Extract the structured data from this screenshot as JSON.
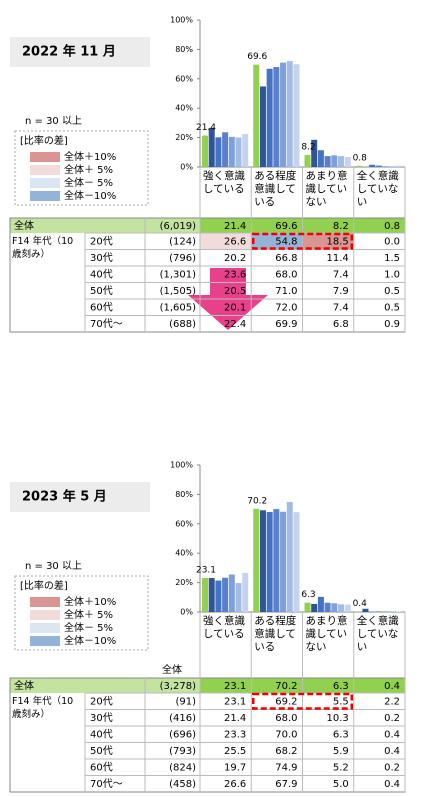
{
  "panels": [
    {
      "period": "2022 年 11 月",
      "n_note": "n = 30 以上",
      "legend_title": "[比率の差]",
      "legend": [
        {
          "label": "全体＋10%",
          "color": "#d99594"
        },
        {
          "label": "全体＋ 5%",
          "color": "#f2dcdb"
        },
        {
          "label": "全体－ 5%",
          "color": "#dce6f2"
        },
        {
          "label": "全体－10%",
          "color": "#95b3d7"
        }
      ],
      "ylim": [
        0,
        100
      ],
      "yticks": [
        {
          "value": 0,
          "label": "0%"
        },
        {
          "value": 20,
          "label": "20%"
        },
        {
          "value": 40,
          "label": "40%"
        },
        {
          "value": 60,
          "label": "60%"
        },
        {
          "value": 80,
          "label": "80%"
        },
        {
          "value": 100,
          "label": "100%"
        }
      ],
      "columns": [
        "強く意識している",
        "ある程度意識している",
        "あまり意識していない",
        "全く意識していない"
      ],
      "bar_colors": [
        "#92d050",
        "#2f5597",
        "#4472c4",
        "#5b7fc8",
        "#7f9fd8",
        "#a4bce4",
        "#c5d3ee"
      ],
      "total": {
        "label": "全体",
        "n": "(6,019)",
        "values": [
          21.4,
          69.6,
          8.2,
          0.8
        ],
        "value_labels": [
          "21.4",
          "69.6",
          "8.2",
          "0.8"
        ]
      },
      "group_label": "F14 年代（10 歳刻み）",
      "rows": [
        {
          "label": "20代",
          "n": "(124)",
          "values": [
            26.6,
            54.8,
            18.5,
            0
          ],
          "value_labels": [
            "26.6",
            "54.8",
            "18.5",
            "0.0"
          ],
          "shade": [
            1,
            3,
            0,
            null
          ]
        },
        {
          "label": "30代",
          "n": "(796)",
          "values": [
            20.2,
            66.8,
            11.4,
            1.5
          ],
          "value_labels": [
            "20.2",
            "66.8",
            "11.4",
            "1.5"
          ]
        },
        {
          "label": "40代",
          "n": "(1,301)",
          "values": [
            23.6,
            68,
            7.4,
            1
          ],
          "value_labels": [
            "23.6",
            "68.0",
            "7.4",
            "1.0"
          ]
        },
        {
          "label": "50代",
          "n": "(1,505)",
          "values": [
            20.5,
            71,
            7.9,
            0.5
          ],
          "value_labels": [
            "20.5",
            "71.0",
            "7.9",
            "0.5"
          ]
        },
        {
          "label": "60代",
          "n": "(1,605)",
          "values": [
            20.1,
            72,
            7.4,
            0.5
          ],
          "value_labels": [
            "20.1",
            "72.0",
            "7.4",
            "0.5"
          ]
        },
        {
          "label": "70代～",
          "n": "(688)",
          "values": [
            22.4,
            69.9,
            6.8,
            0.9
          ],
          "value_labels": [
            "22.4",
            "69.9",
            "6.8",
            "0.9"
          ]
        }
      ]
    },
    {
      "period": "2023 年 5 月",
      "n_note": "n = 30 以上",
      "legend_title": "[比率の差]",
      "legend": [
        {
          "label": "全体＋10%",
          "color": "#d99594"
        },
        {
          "label": "全体＋ 5%",
          "color": "#f2dcdb"
        },
        {
          "label": "全体－ 5%",
          "color": "#dce6f2"
        },
        {
          "label": "全体－10%",
          "color": "#95b3d7"
        }
      ],
      "ylim": [
        0,
        100
      ],
      "yticks": [
        {
          "value": 0,
          "label": "0%"
        },
        {
          "value": 20,
          "label": "20%"
        },
        {
          "value": 40,
          "label": "40%"
        },
        {
          "value": 60,
          "label": "60%"
        },
        {
          "value": 80,
          "label": "80%"
        },
        {
          "value": 100,
          "label": "100%"
        }
      ],
      "columns": [
        "強く意識している",
        "ある程度意識している",
        "あまり意識していない",
        "全く意識していない"
      ],
      "bar_colors": [
        "#92d050",
        "#2f5597",
        "#4472c4",
        "#5b7fc8",
        "#7f9fd8",
        "#a4bce4",
        "#c5d3ee"
      ],
      "n_header": "全体",
      "total": {
        "label": "全体",
        "n": "(3,278)",
        "values": [
          23.1,
          70.2,
          6.3,
          0.4
        ],
        "value_labels": [
          "23.1",
          "70.2",
          "6.3",
          "0.4"
        ]
      },
      "group_label": "F14 年代（10 歳刻み）",
      "rows": [
        {
          "label": "20代",
          "n": "(91)",
          "values": [
            23.1,
            69.2,
            5.5,
            2.2
          ],
          "value_labels": [
            "23.1",
            "69.2",
            "5.5",
            "2.2"
          ]
        },
        {
          "label": "30代",
          "n": "(416)",
          "values": [
            21.4,
            68,
            10.3,
            0.2
          ],
          "value_labels": [
            "21.4",
            "68.0",
            "10.3",
            "0.2"
          ]
        },
        {
          "label": "40代",
          "n": "(696)",
          "values": [
            23.3,
            70,
            6.3,
            0.4
          ],
          "value_labels": [
            "23.3",
            "70.0",
            "6.3",
            "0.4"
          ]
        },
        {
          "label": "50代",
          "n": "(793)",
          "values": [
            25.5,
            68.2,
            5.9,
            0.4
          ],
          "value_labels": [
            "25.5",
            "68.2",
            "5.9",
            "0.4"
          ]
        },
        {
          "label": "60代",
          "n": "(824)",
          "values": [
            19.7,
            74.9,
            5.2,
            0.2
          ],
          "value_labels": [
            "19.7",
            "74.9",
            "5.2",
            "0.2"
          ]
        },
        {
          "label": "70代～",
          "n": "(458)",
          "values": [
            26.6,
            67.9,
            5,
            0.4
          ],
          "value_labels": [
            "26.6",
            "67.9",
            "5.0",
            "0.4"
          ]
        }
      ]
    }
  ]
}
